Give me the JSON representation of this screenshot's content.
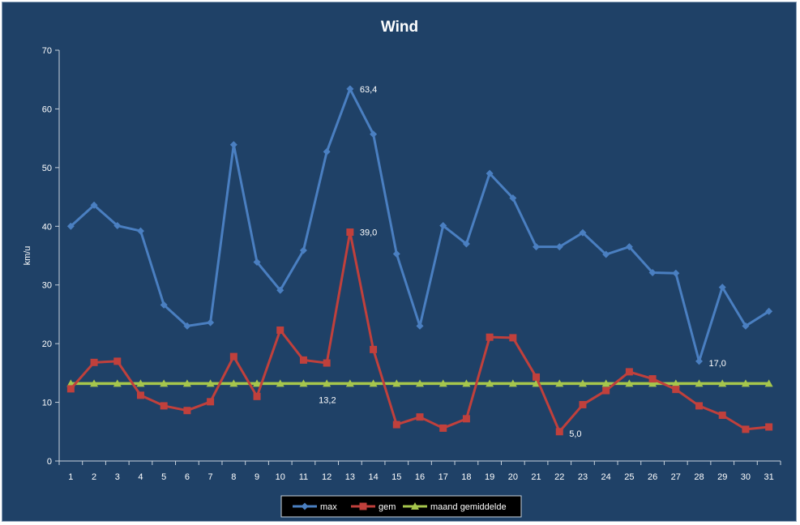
{
  "chart_data": {
    "type": "line",
    "title": "Wind",
    "xlabel": "",
    "ylabel": "km/u",
    "ylim": [
      0,
      70
    ],
    "yticks": [
      0,
      10,
      20,
      30,
      40,
      50,
      60,
      70
    ],
    "grid": false,
    "legend_position": "bottom",
    "categories": [
      "1",
      "2",
      "3",
      "4",
      "5",
      "6",
      "7",
      "8",
      "9",
      "10",
      "11",
      "12",
      "13",
      "14",
      "15",
      "16",
      "17",
      "18",
      "19",
      "20",
      "21",
      "22",
      "23",
      "24",
      "25",
      "26",
      "27",
      "28",
      "29",
      "30",
      "31"
    ],
    "series": [
      {
        "name": "max",
        "color": "#4a7fc1",
        "marker": "diamond",
        "values": [
          40.0,
          43.6,
          40.1,
          39.2,
          26.6,
          23.0,
          23.6,
          53.9,
          33.9,
          29.1,
          35.9,
          52.7,
          63.4,
          55.7,
          35.3,
          23.0,
          40.1,
          37.0,
          49.0,
          44.8,
          36.5,
          36.5,
          38.9,
          35.2,
          36.5,
          32.1,
          32.0,
          17.0,
          29.6,
          23.0,
          25.5
        ]
      },
      {
        "name": "gem",
        "color": "#c0403c",
        "marker": "square",
        "values": [
          12.3,
          16.8,
          17.0,
          11.2,
          9.4,
          8.6,
          10.1,
          17.8,
          11.0,
          22.3,
          17.2,
          16.7,
          39.0,
          19.0,
          6.2,
          7.5,
          5.6,
          7.2,
          21.1,
          21.0,
          14.3,
          5.0,
          9.6,
          12.0,
          15.2,
          14.0,
          12.2,
          9.4,
          7.8,
          5.4,
          5.8
        ]
      },
      {
        "name": "maand gemiddelde",
        "color": "#a6c64c",
        "marker": "triangle",
        "values": [
          13.2,
          13.2,
          13.2,
          13.2,
          13.2,
          13.2,
          13.2,
          13.2,
          13.2,
          13.2,
          13.2,
          13.2,
          13.2,
          13.2,
          13.2,
          13.2,
          13.2,
          13.2,
          13.2,
          13.2,
          13.2,
          13.2,
          13.2,
          13.2,
          13.2,
          13.2,
          13.2,
          13.2,
          13.2,
          13.2,
          13.2
        ]
      }
    ],
    "annotations": [
      {
        "series": 0,
        "index": 12,
        "text": "63,4"
      },
      {
        "series": 1,
        "index": 12,
        "text": "39,0"
      },
      {
        "series": 0,
        "index": 27,
        "text": "17,0"
      },
      {
        "series": 1,
        "index": 21,
        "text": "5,0"
      },
      {
        "series": 2,
        "index": 11,
        "text": "13,2"
      }
    ]
  }
}
